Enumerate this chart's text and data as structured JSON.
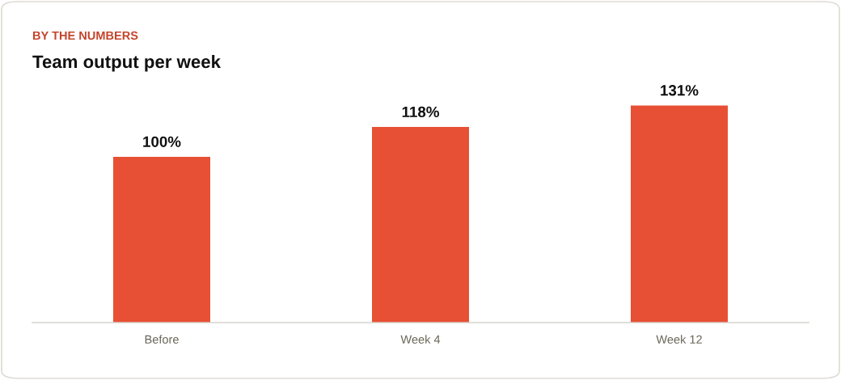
{
  "chart_data": {
    "type": "bar",
    "subtitle": "BY THE NUMBERS",
    "title": "Team output per week",
    "categories": [
      "Before",
      "Week 4",
      "Week 12"
    ],
    "values": [
      100,
      118,
      131
    ],
    "value_labels": [
      "100%",
      "118%",
      "131%"
    ],
    "color": "#e85035"
  }
}
